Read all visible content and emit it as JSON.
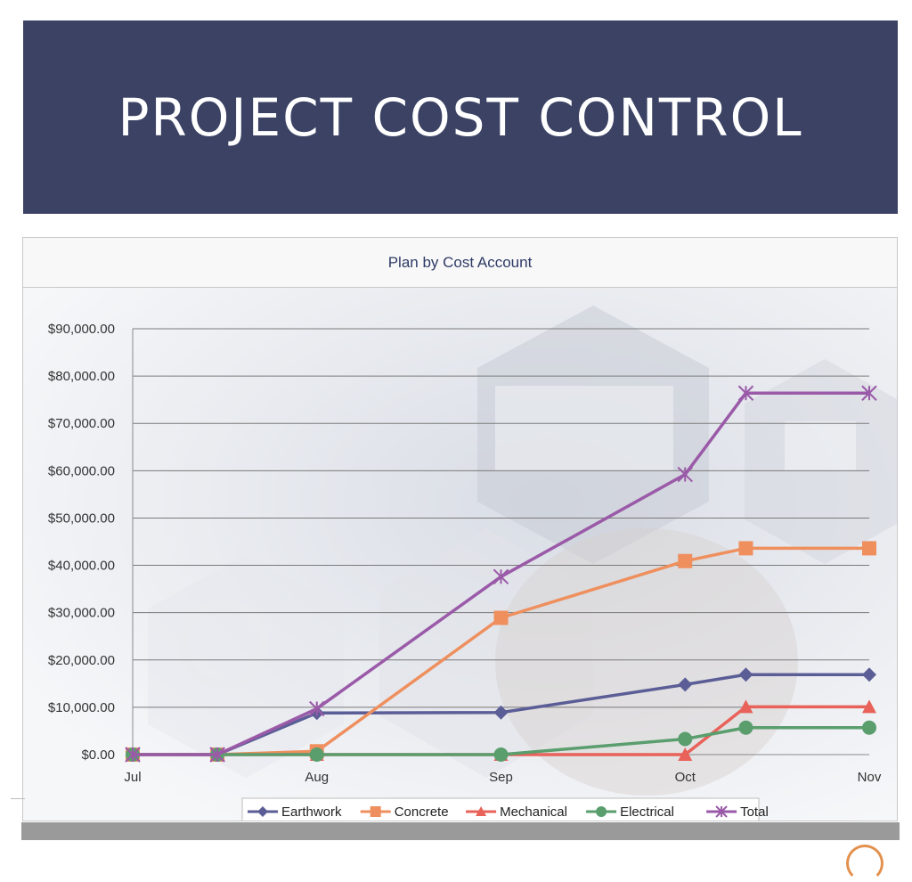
{
  "banner": {
    "title": "PROJECT COST CONTROL"
  },
  "chart_data": {
    "type": "line",
    "title": "Plan by Cost Account",
    "xlabel": "",
    "ylabel": "",
    "x_ticks": [
      "Jul",
      "Aug",
      "Sep",
      "Oct",
      "Nov"
    ],
    "x": [
      "Jul",
      "",
      "Aug",
      "Sep",
      "Oct",
      "",
      "Nov"
    ],
    "x_num": [
      0,
      0.46,
      1,
      2,
      3,
      3.33,
      4
    ],
    "ylim": [
      0,
      90000
    ],
    "y_ticks": [
      "$0.00",
      "$10,000.00",
      "$20,000.00",
      "$30,000.00",
      "$40,000.00",
      "$50,000.00",
      "$60,000.00",
      "$70,000.00",
      "$80,000.00",
      "$90,000.00"
    ],
    "grid": "horizontal",
    "legend_position": "bottom",
    "series": [
      {
        "name": "Earthwork",
        "color": "#5b5e96",
        "marker": "diamond",
        "values": [
          0,
          0,
          8800,
          8900,
          14800,
          16900,
          16900
        ]
      },
      {
        "name": "Concrete",
        "color": "#ef8f5e",
        "marker": "square",
        "values": [
          0,
          0,
          700,
          28900,
          40900,
          43600,
          43600
        ]
      },
      {
        "name": "Mechanical",
        "color": "#e8625a",
        "marker": "triangle",
        "values": [
          0,
          0,
          0,
          0,
          0,
          10100,
          10100
        ]
      },
      {
        "name": "Electrical",
        "color": "#5a9e6e",
        "marker": "circle",
        "values": [
          0,
          0,
          0,
          0,
          3300,
          5700,
          5700
        ]
      },
      {
        "name": "Total",
        "color": "#9a5aa8",
        "marker": "asterisk",
        "values": [
          0,
          0,
          9700,
          37600,
          59200,
          76400,
          76400
        ]
      }
    ]
  }
}
